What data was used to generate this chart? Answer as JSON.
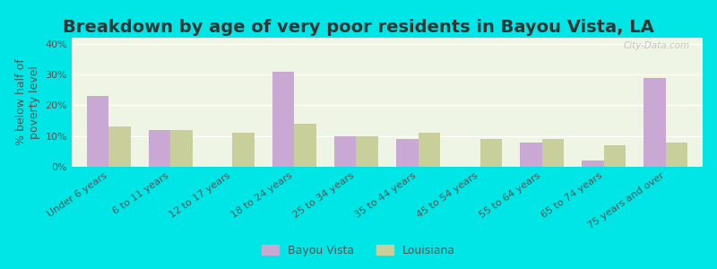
{
  "title": "Breakdown by age of very poor residents in Bayou Vista, LA",
  "ylabel": "% below half of\npoverty level",
  "categories": [
    "Under 6 years",
    "6 to 11 years",
    "12 to 17 years",
    "18 to 24 years",
    "25 to 34 years",
    "35 to 44 years",
    "45 to 54 years",
    "55 to 64 years",
    "65 to 74 years",
    "75 years and over"
  ],
  "bayou_vista": [
    23,
    12,
    0,
    31,
    10,
    9,
    0,
    8,
    2,
    29
  ],
  "louisiana": [
    13,
    12,
    11,
    14,
    10,
    11,
    9,
    9,
    7,
    8
  ],
  "bayou_color": "#c9a8d4",
  "louisiana_color": "#c8cf9a",
  "plot_bg": "#eef5e4",
  "bg_outer": "#00e5e5",
  "ylim": [
    0,
    42
  ],
  "yticks": [
    0,
    10,
    20,
    30,
    40
  ],
  "ytick_labels": [
    "0%",
    "10%",
    "20%",
    "30%",
    "40%"
  ],
  "title_fontsize": 14,
  "axis_label_fontsize": 9,
  "tick_fontsize": 8,
  "bar_width": 0.35,
  "legend_bayou": "Bayou Vista",
  "legend_louisiana": "Louisiana"
}
